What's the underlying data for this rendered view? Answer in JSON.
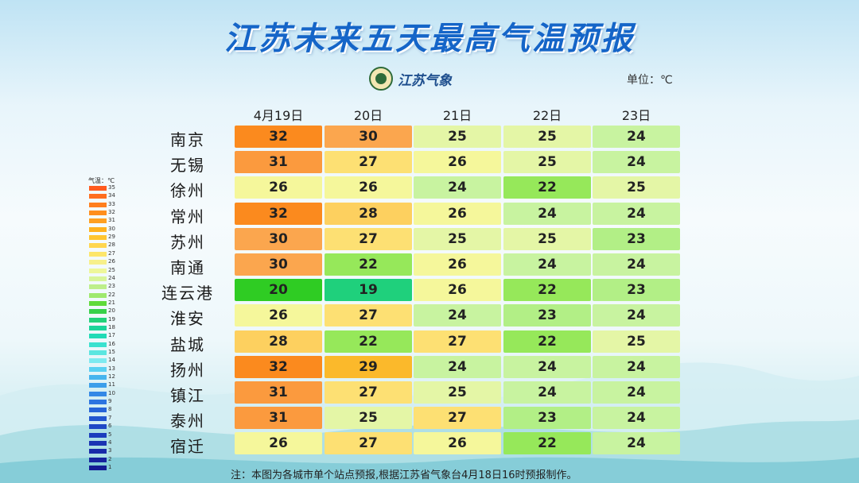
{
  "title": "江苏未来五天最高气温预报",
  "logo_text": "江苏气象",
  "unit_label": "单位：℃",
  "note": "注：本图为各城市单个站点预报,根据江苏省气象台4月18日16时预报制作。",
  "legend_title": "气温：℃",
  "legend_labels": [
    "35",
    "34",
    "33",
    "32",
    "31",
    "30",
    "29",
    "28",
    "27",
    "26",
    "25",
    "24",
    "23",
    "22",
    "21",
    "20",
    "19",
    "18",
    "17",
    "16",
    "15",
    "14",
    "13",
    "12",
    "11",
    "10",
    "9",
    "8",
    "7",
    "6",
    "5",
    "4",
    "3",
    "2",
    "1"
  ],
  "legend_colors": [
    "#ff5a1e",
    "#ff6e1e",
    "#ff7f1e",
    "#ff8f1e",
    "#ffa021",
    "#ffb21e",
    "#ffc631",
    "#ffd64f",
    "#fde66a",
    "#f7f08a",
    "#eef79a",
    "#d8f59a",
    "#bdef8a",
    "#9ee96d",
    "#5fda3a",
    "#38d14a",
    "#22d27a",
    "#1ad59a",
    "#21dbb6",
    "#3ae1cf",
    "#5be6e0",
    "#7eeaf0",
    "#5ad0f2",
    "#46b4ee",
    "#3c9eea",
    "#3388e6",
    "#2c74e0",
    "#2664d8",
    "#2256cf",
    "#1f49c6",
    "#1c3dbd",
    "#1a33b3",
    "#182aa9",
    "#16229e",
    "#141b94"
  ],
  "chart_data": {
    "type": "table",
    "title": "江苏未来五天最高气温预报",
    "unit": "℃",
    "dates": [
      "4月19日",
      "20日",
      "21日",
      "22日",
      "23日"
    ],
    "cities": [
      "南京",
      "无锡",
      "徐州",
      "常州",
      "苏州",
      "南通",
      "连云港",
      "淮安",
      "盐城",
      "扬州",
      "镇江",
      "泰州",
      "宿迁"
    ],
    "values": [
      [
        32,
        30,
        25,
        25,
        24
      ],
      [
        31,
        27,
        26,
        25,
        24
      ],
      [
        26,
        26,
        24,
        22,
        25
      ],
      [
        32,
        28,
        26,
        24,
        24
      ],
      [
        30,
        27,
        25,
        25,
        23
      ],
      [
        30,
        22,
        26,
        24,
        24
      ],
      [
        20,
        19,
        26,
        22,
        23
      ],
      [
        26,
        27,
        24,
        23,
        24
      ],
      [
        28,
        22,
        27,
        22,
        25
      ],
      [
        32,
        29,
        24,
        24,
        24
      ],
      [
        31,
        27,
        25,
        24,
        24
      ],
      [
        31,
        25,
        27,
        23,
        24
      ],
      [
        26,
        27,
        26,
        22,
        24
      ]
    ],
    "color_scale": {
      "19": "#1fd07c",
      "20": "#2fcc23",
      "22": "#96e85a",
      "23": "#b2ef86",
      "24": "#c8f3a0",
      "25": "#e4f6a6",
      "26": "#f5f79b",
      "27": "#fde073",
      "28": "#fdd05f",
      "29": "#fbb92b",
      "30": "#fba64e",
      "31": "#fb9a3e",
      "32": "#fb8a1e"
    }
  }
}
